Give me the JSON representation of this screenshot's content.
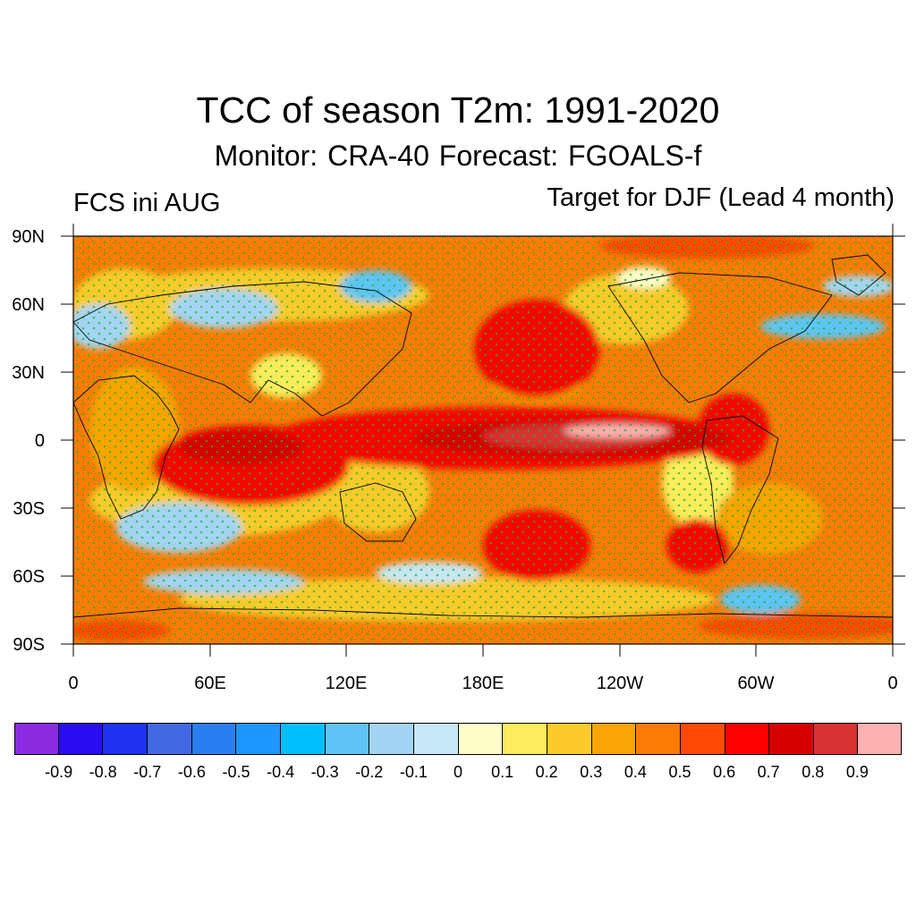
{
  "header": {
    "title": "TCC of season T2m: 1991-2020",
    "subtitle": "Monitor: CRA-40   Forecast: FGOALS-f",
    "left_label": "FCS ini AUG",
    "right_label": "Target for DJF (Lead 4 month)"
  },
  "map": {
    "lat_labels": [
      "90N",
      "60N",
      "30N",
      "0",
      "30S",
      "60S",
      "90S"
    ],
    "lon_labels": [
      "0",
      "60E",
      "120E",
      "180E",
      "120W",
      "60W",
      "0"
    ],
    "colors": {
      "ocean_base": "#fd7b06",
      "land_outline": "#000000",
      "stipple": "#0bbf2a"
    }
  },
  "colorbar": {
    "colors": [
      "#8a2be2",
      "#2a0cf2",
      "#1e32f0",
      "#4169e1",
      "#2a7ff0",
      "#1e96ff",
      "#00bfff",
      "#5fc4f5",
      "#a4d4f3",
      "#c7e7f8",
      "#fffdc9",
      "#ffec5c",
      "#fcca2a",
      "#fba404",
      "#fd7b06",
      "#fe4a02",
      "#fe0000",
      "#d60000",
      "#d83232",
      "#ffb0b0"
    ],
    "labels": [
      "-0.9",
      "-0.8",
      "-0.7",
      "-0.6",
      "-0.5",
      "-0.4",
      "-0.3",
      "-0.2",
      "-0.1",
      "0",
      "0.1",
      "0.2",
      "0.3",
      "0.4",
      "0.5",
      "0.6",
      "0.7",
      "0.8",
      "0.9"
    ]
  }
}
